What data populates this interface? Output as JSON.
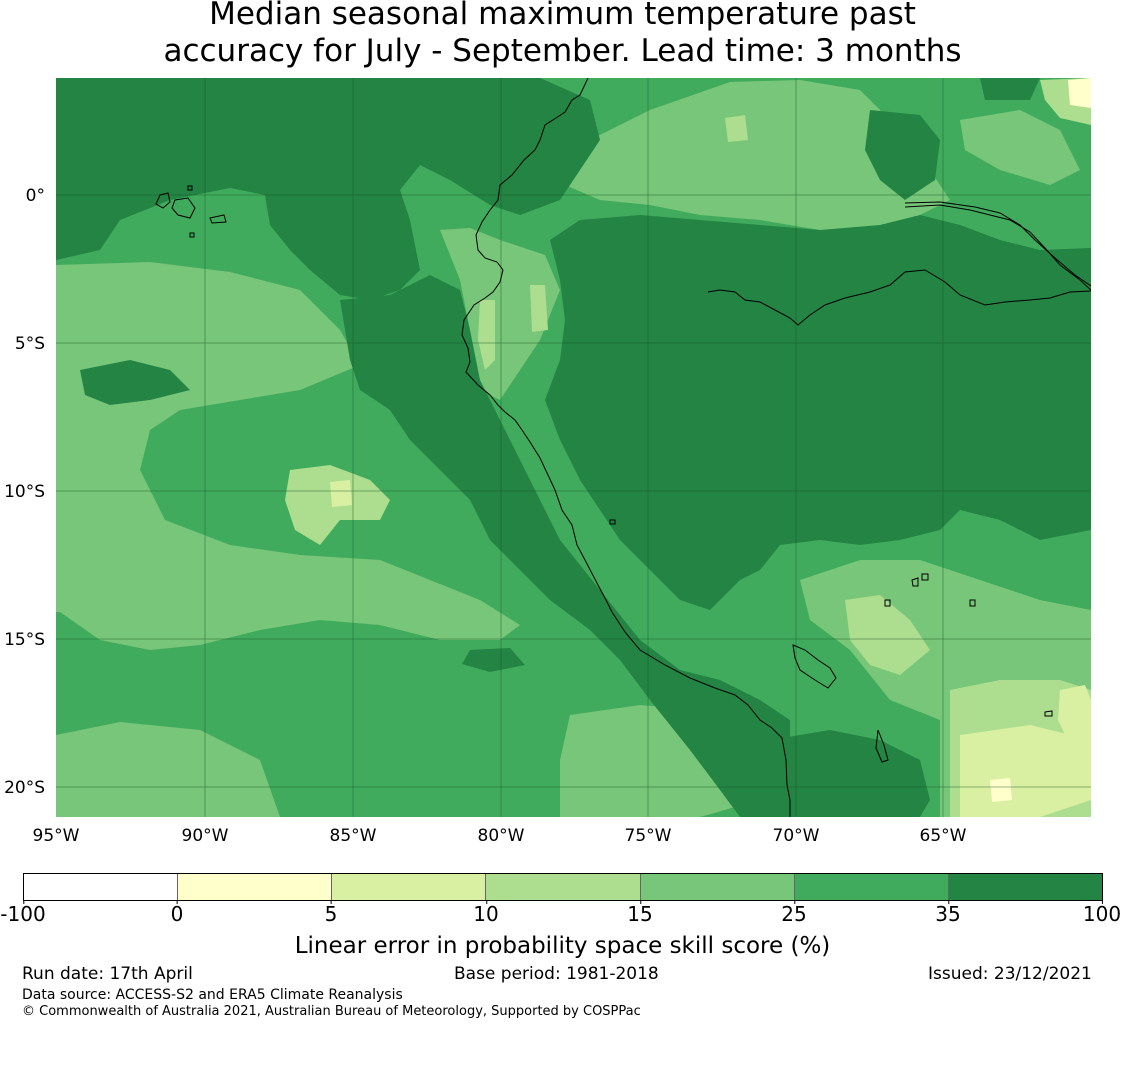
{
  "header": {
    "title_line1": "Median seasonal maximum temperature past",
    "title_line2": "accuracy for July - September. Lead time: 3 months"
  },
  "map": {
    "lon_range": [
      -95,
      -60
    ],
    "lat_range": [
      -21,
      4
    ],
    "gridlines": true,
    "lon_ticks": [
      {
        "value": -95,
        "label": "95°W"
      },
      {
        "value": -90,
        "label": "90°W"
      },
      {
        "value": -85,
        "label": "85°W"
      },
      {
        "value": -80,
        "label": "80°W"
      },
      {
        "value": -75,
        "label": "75°W"
      },
      {
        "value": -70,
        "label": "70°W"
      },
      {
        "value": -65,
        "label": "65°W"
      }
    ],
    "lat_ticks": [
      {
        "value": 0,
        "label": "0°"
      },
      {
        "value": -5,
        "label": "5°S"
      },
      {
        "value": -10,
        "label": "10°S"
      },
      {
        "value": -15,
        "label": "15°S"
      },
      {
        "value": -20,
        "label": "20°S"
      }
    ],
    "class_colors": [
      "#ffffff",
      "#ffffcc",
      "#d9f0a3",
      "#addd8e",
      "#78c679",
      "#41ab5d",
      "#238443"
    ]
  },
  "colorbar": {
    "colors": [
      "#ffffff",
      "#ffffcc",
      "#d9f0a3",
      "#addd8e",
      "#78c679",
      "#41ab5d",
      "#238443"
    ],
    "ticks": [
      "-100",
      "0",
      "5",
      "10",
      "15",
      "25",
      "35",
      "100"
    ],
    "label": "Linear error in probability space skill score (%)"
  },
  "footer": {
    "run_date": "Run date: 17th April",
    "base_period": "Base period: 1981-2018",
    "issued": "Issued: 23/12/2021",
    "data_source": "Data source: ACCESS-S2 and ERA5 Climate Reanalysis",
    "copyright": "© Commonwealth of Australia 2021, Australian Bureau of Meteorology, Supported by COSPPac"
  }
}
